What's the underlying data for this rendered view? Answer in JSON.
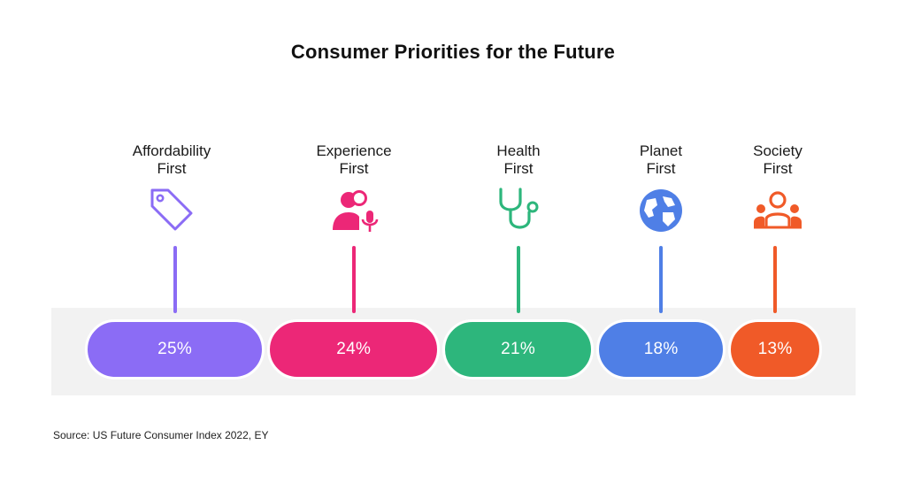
{
  "chart_data": {
    "type": "bar",
    "title": "Consumer Priorities for the Future",
    "categories": [
      {
        "line1": "Affordability",
        "line2": "First",
        "value": 25,
        "value_label": "25%",
        "color": "#8b6cf5",
        "icon": "price-tag-icon"
      },
      {
        "line1": "Experience",
        "line2": "First",
        "value": 24,
        "value_label": "24%",
        "color": "#ec2777",
        "icon": "user-microphone-icon"
      },
      {
        "line1": "Health",
        "line2": "First",
        "value": 21,
        "value_label": "21%",
        "color": "#2db67c",
        "icon": "stethoscope-icon"
      },
      {
        "line1": "Planet",
        "line2": "First",
        "value": 18,
        "value_label": "18%",
        "color": "#4f7fe6",
        "icon": "globe-icon"
      },
      {
        "line1": "Society",
        "line2": "First",
        "value": 13,
        "value_label": "13%",
        "color": "#f05a28",
        "icon": "people-group-icon"
      }
    ],
    "unit": "%",
    "source": "Source: US Future Consumer Index 2022, EY"
  }
}
